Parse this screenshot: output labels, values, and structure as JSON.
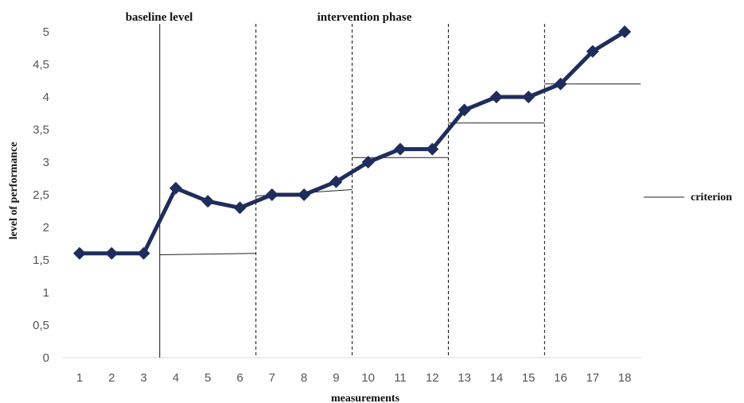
{
  "chart_data": {
    "type": "line",
    "xlabel": "measurements",
    "ylabel": "level of performance",
    "ylim": [
      0,
      5
    ],
    "xlim": [
      1,
      18
    ],
    "yticks": [
      "0",
      "0,5",
      "1",
      "1,5",
      "2",
      "2,5",
      "3",
      "3,5",
      "4",
      "4,5",
      "5"
    ],
    "ytick_values": [
      0,
      0.5,
      1,
      1.5,
      2,
      2.5,
      3,
      3.5,
      4,
      4.5,
      5
    ],
    "x": [
      1,
      2,
      3,
      4,
      5,
      6,
      7,
      8,
      9,
      10,
      11,
      12,
      13,
      14,
      15,
      16,
      17,
      18
    ],
    "xticks": [
      "1",
      "2",
      "3",
      "4",
      "5",
      "6",
      "7",
      "8",
      "9",
      "10",
      "11",
      "12",
      "13",
      "14",
      "15",
      "16",
      "17",
      "18"
    ],
    "series": [
      {
        "color": "#1f2d5c",
        "marker": "diamond",
        "values": [
          1.6,
          1.6,
          1.6,
          2.6,
          2.4,
          2.3,
          2.5,
          2.5,
          2.7,
          3.0,
          3.2,
          3.2,
          3.8,
          4.0,
          4.0,
          4.2,
          4.7,
          5.0
        ]
      }
    ],
    "phase_labels": {
      "baseline": "baseline level",
      "intervention": "intervention phase"
    },
    "phase_lines": [
      {
        "x": 3.5,
        "style": "solid"
      },
      {
        "x": 6.5,
        "style": "dashed"
      },
      {
        "x": 9.5,
        "style": "dashed"
      },
      {
        "x": 12.5,
        "style": "dashed"
      },
      {
        "x": 15.5,
        "style": "dashed"
      }
    ],
    "criterion_lines": [
      {
        "x1": 3.5,
        "x2": 6.5,
        "y1": 1.58,
        "y2": 1.6
      },
      {
        "x1": 6.5,
        "x2": 9.5,
        "y1": 2.48,
        "y2": 2.58
      },
      {
        "x1": 9.5,
        "x2": 12.5,
        "y1": 3.07,
        "y2": 3.07
      },
      {
        "x1": 12.5,
        "x2": 15.5,
        "y1": 3.6,
        "y2": 3.6
      },
      {
        "x1": 15.5,
        "x2": 18.5,
        "y1": 4.2,
        "y2": 4.2
      }
    ],
    "legend": {
      "label": "criterion",
      "position": "right"
    },
    "grid": false
  }
}
